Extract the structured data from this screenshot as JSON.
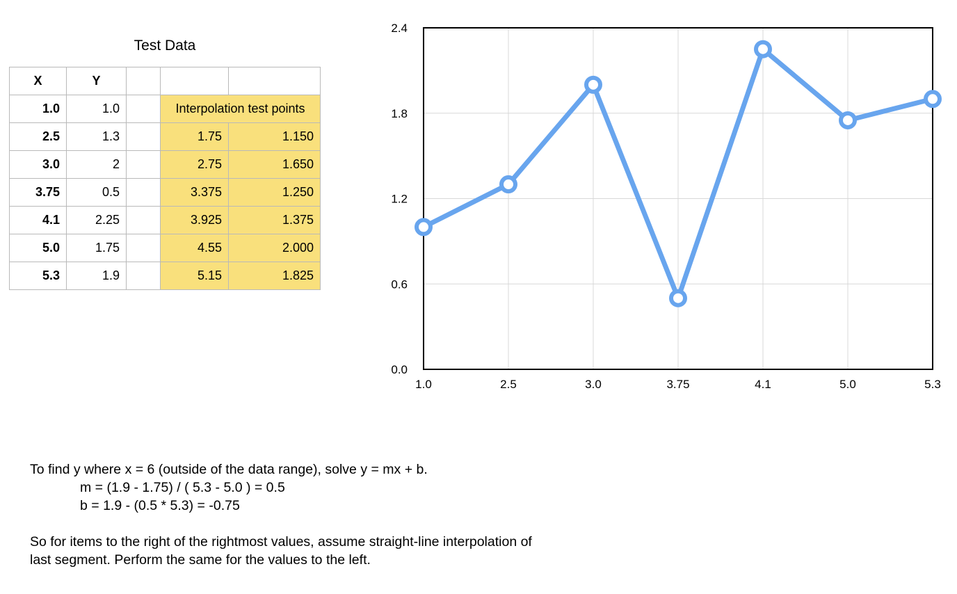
{
  "table": {
    "title": "Test Data",
    "headers": [
      "X",
      "Y",
      "",
      "",
      ""
    ],
    "interp_label": "Interpolation test points",
    "rows": [
      {
        "x": "1.0",
        "y": "1.0",
        "ix": "",
        "iy": ""
      },
      {
        "x": "2.5",
        "y": "1.3",
        "ix": "1.75",
        "iy": "1.150"
      },
      {
        "x": "3.0",
        "y": "2",
        "ix": "2.75",
        "iy": "1.650"
      },
      {
        "x": "3.75",
        "y": "0.5",
        "ix": "3.375",
        "iy": "1.250"
      },
      {
        "x": "4.1",
        "y": "2.25",
        "ix": "3.925",
        "iy": "1.375"
      },
      {
        "x": "5.0",
        "y": "1.75",
        "ix": "4.55",
        "iy": "2.000"
      },
      {
        "x": "5.3",
        "y": "1.9",
        "ix": "5.15",
        "iy": "1.825"
      }
    ]
  },
  "chart_data": {
    "type": "line",
    "categories": [
      "1.0",
      "2.5",
      "3.0",
      "3.75",
      "4.1",
      "5.0",
      "5.3"
    ],
    "series": [
      {
        "values": [
          1.0,
          1.3,
          2.0,
          0.5,
          2.25,
          1.75,
          1.9
        ],
        "color": "#68a5ee"
      }
    ],
    "ylim": [
      0,
      2.4
    ],
    "yticks": [
      "0.0",
      "0.6",
      "1.2",
      "1.8",
      "2.4"
    ],
    "ytick_values": [
      0,
      0.6,
      1.2,
      1.8,
      2.4
    ],
    "grid": true,
    "title": "",
    "xlabel": "",
    "ylabel": ""
  },
  "notes": {
    "line1": "To find y where x = 6 (outside of the data range), solve y = mx + b.",
    "line2": "m = (1.9 - 1.75) / ( 5.3 - 5.0 ) = 0.5",
    "line3": "b = 1.9 - (0.5 * 5.3) = -0.75",
    "line4": "So for items to the right of the rightmost values, assume straight-line interpolation of",
    "line5": "last segment. Perform the same for the values to the left."
  }
}
